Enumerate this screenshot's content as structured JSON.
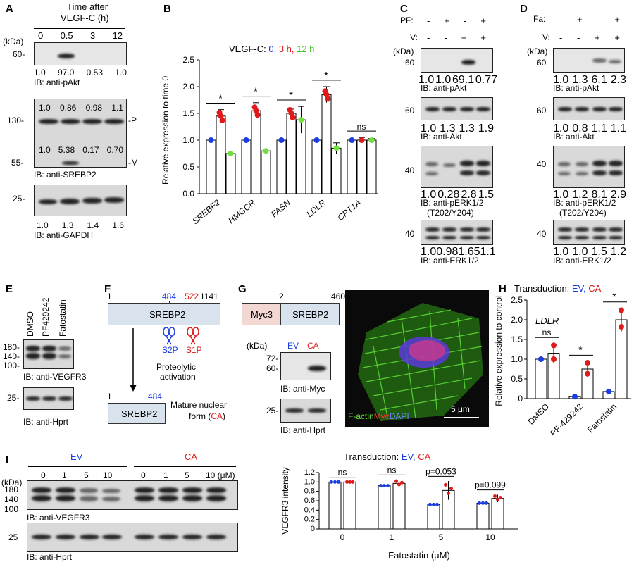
{
  "panelA": {
    "label": "A",
    "time_title": "Time after",
    "time_sub": "VEGF-C (h)",
    "times": [
      "0",
      "0.5",
      "3",
      "12"
    ],
    "kda": "(kDa)",
    "m60": "60-",
    "m130": "130-",
    "m55": "55-",
    "m25": "25-",
    "pakt_vals": [
      "1.0",
      "97.0",
      "0.53",
      "1.0"
    ],
    "pakt_ib": "IB: anti-pAkt",
    "p_vals": [
      "1.0",
      "0.86",
      "0.98",
      "1.1"
    ],
    "m_vals": [
      "1.0",
      "5.38",
      "0.17",
      "0.70"
    ],
    "p_mark": "-P",
    "m_mark": "-M",
    "srebp_ib": "IB: anti-SREBP2",
    "gapdh_vals": [
      "1.0",
      "1.3",
      "1.4",
      "1.6"
    ],
    "gapdh_ib": "IB: anti-GAPDH"
  },
  "panelB": {
    "label": "B",
    "legend_prefix": "VEGF-C:",
    "legend_0": "0,",
    "legend_3": "3 h,",
    "legend_12": "12 h",
    "ylabel": "Relative expression to time 0",
    "sig_sym": "*",
    "ns": "ns"
  },
  "chart_data": {
    "type": "bar",
    "categories": [
      "SREBF2",
      "HMGCR",
      "FASN",
      "LDLR",
      "CPT1A"
    ],
    "series": [
      {
        "name": "0",
        "values": [
          1.0,
          1.0,
          1.0,
          1.0,
          1.0
        ]
      },
      {
        "name": "3 h",
        "values": [
          1.45,
          1.55,
          1.5,
          1.85,
          1.0
        ]
      },
      {
        "name": "12 h",
        "values": [
          0.75,
          0.8,
          1.38,
          0.85,
          1.0
        ]
      }
    ],
    "errors": [
      [
        0,
        0.12,
        0
      ],
      [
        0,
        0.15,
        0
      ],
      [
        0,
        0.08,
        0.25
      ],
      [
        0,
        0.15,
        0.1
      ],
      [
        0,
        0.05,
        0.03
      ]
    ],
    "ylabel": "Relative expression to time 0",
    "ylim": [
      0,
      2.5
    ],
    "yticks": [
      0,
      0.5,
      1.0,
      1.5,
      2.0,
      2.5
    ],
    "significance": [
      "*",
      "*",
      "*",
      "*",
      "ns"
    ]
  },
  "panelC": {
    "label": "C",
    "pf": "PF:",
    "v": "V:",
    "pf_signs": [
      "-",
      "+",
      "-",
      "+"
    ],
    "v_signs": [
      "-",
      "-",
      "+",
      "+"
    ],
    "kda": "(kDa)",
    "m60": "60",
    "m40": "40",
    "pakt_vals": [
      "1.0",
      "1.0",
      "69.1",
      "0.77"
    ],
    "pakt_ib": "IB: anti-pAkt",
    "akt_vals": [
      "1.0",
      "1.3",
      "1.3",
      "1.9"
    ],
    "akt_ib": "IB: anti-Akt",
    "perk_vals": [
      "1.0",
      "0.28",
      "2.8",
      "1.5"
    ],
    "perk_ib": "IB: anti-pERK1/2",
    "perk_site": "(T202/Y204)",
    "erk_vals": [
      "1.0",
      "0.98",
      "1.65",
      "1.1"
    ],
    "erk_ib": "IB: anti-ERK1/2"
  },
  "panelD": {
    "label": "D",
    "fa": "Fa:",
    "v": "V:",
    "fa_signs": [
      "-",
      "+",
      "-",
      "+"
    ],
    "v_signs": [
      "-",
      "-",
      "+",
      "+"
    ],
    "kda": "(kDa)",
    "m60": "60",
    "m40": "40",
    "pakt_vals": [
      "1.0",
      "1.3",
      "6.1",
      "2.3"
    ],
    "pakt_ib": "IB: anti-pAkt",
    "akt_vals": [
      "1.0",
      "0.8",
      "1.1",
      "1.1"
    ],
    "akt_ib": "IB: anti-Akt",
    "perk_vals": [
      "1.0",
      "1.2",
      "8.1",
      "2.9"
    ],
    "perk_ib": "IB: anti-pERK1/2",
    "perk_site": "(T202/Y204)",
    "erk_vals": [
      "1.0",
      "1.0",
      "1.5",
      "1.2"
    ],
    "erk_ib": "IB: anti-ERK1/2"
  },
  "panelE": {
    "label": "E",
    "lanes": [
      "DMSO",
      "PF429242",
      "Fatostatin"
    ],
    "m180": "180-",
    "m140": "140-",
    "m100": "100-",
    "m25": "25-",
    "vegfr3_ib": "IB: anti-VEGFR3",
    "hprt_ib": "IB: anti-Hprt"
  },
  "panelF": {
    "label": "F",
    "n1": "1",
    "n484": "484",
    "n522": "522",
    "n1141": "1141",
    "protein": "SREBP2",
    "s2p": "S2P",
    "s1p": "S1P",
    "proteolytic": "Proteolytic",
    "activation": "activation",
    "m1": "1",
    "m484": "484",
    "mature": "SREBP2",
    "mature_form": "Mature nuclear",
    "form": "form (",
    "ca": "CA",
    "close": ")"
  },
  "panelG": {
    "label": "G",
    "n2": "2",
    "n460": "460",
    "myc3": "Myc3",
    "srebp2": "SREBP2",
    "kda": "(kDa)",
    "ev": "EV",
    "ca": "CA",
    "m72": "72-",
    "m60": "60-",
    "m25": "25-",
    "myc_ib": "IB: anti-Myc",
    "hprt_ib": "IB: anti-Hprt",
    "legend_factin": "F-actin",
    "legend_myc": "Myc",
    "legend_dapi": "DAPI",
    "scale": "5 μm"
  },
  "panelH": {
    "label": "H",
    "title": "Transduction:",
    "ev": "EV,",
    "ca": "CA",
    "gene": "LDLR",
    "ylabel": "Relative expression to control",
    "categories": [
      "DMSO",
      "PF-429242",
      "Fatostatin"
    ],
    "ev_values": [
      1.0,
      0.05,
      0.18
    ],
    "ca_values": [
      1.15,
      0.75,
      2.0
    ],
    "ca_err": [
      0.25,
      0.2,
      0.3
    ],
    "yticks": [
      "0",
      "0.5",
      "1.0",
      "1.5",
      "2.0",
      "2.5"
    ],
    "sig": [
      "ns",
      "*",
      "*"
    ]
  },
  "panelI": {
    "label": "I",
    "ev": "EV",
    "ca": "CA",
    "doses": [
      "0",
      "1",
      "5",
      "10",
      "0",
      "1",
      "5",
      "10 (μM)"
    ],
    "kda": "(kDa)",
    "m180": "180",
    "m140": "140",
    "m100": "100",
    "m25": "25",
    "vegfr3_ib": "IB: anti-VEGFR3",
    "hprt_ib": "IB: anti-Hprt",
    "chart_title": "Transduction:",
    "chart_ev": "EV,",
    "chart_ca": "CA",
    "ylabel": "VEGFR3 intensity",
    "xlabel": "Fatostatin (μM)",
    "categories": [
      "0",
      "1",
      "5",
      "10"
    ],
    "ev_values": [
      1.0,
      0.92,
      0.52,
      0.55
    ],
    "ca_values": [
      1.0,
      0.97,
      0.82,
      0.65
    ],
    "ca_err": [
      0.0,
      0.08,
      0.2,
      0.08
    ],
    "yticks": [
      "0",
      "0.2",
      "0.4",
      "0.6",
      "0.8",
      "1.0",
      "1.2"
    ],
    "sig": [
      "ns",
      "ns",
      "p=0.053",
      "p=0.099"
    ]
  }
}
